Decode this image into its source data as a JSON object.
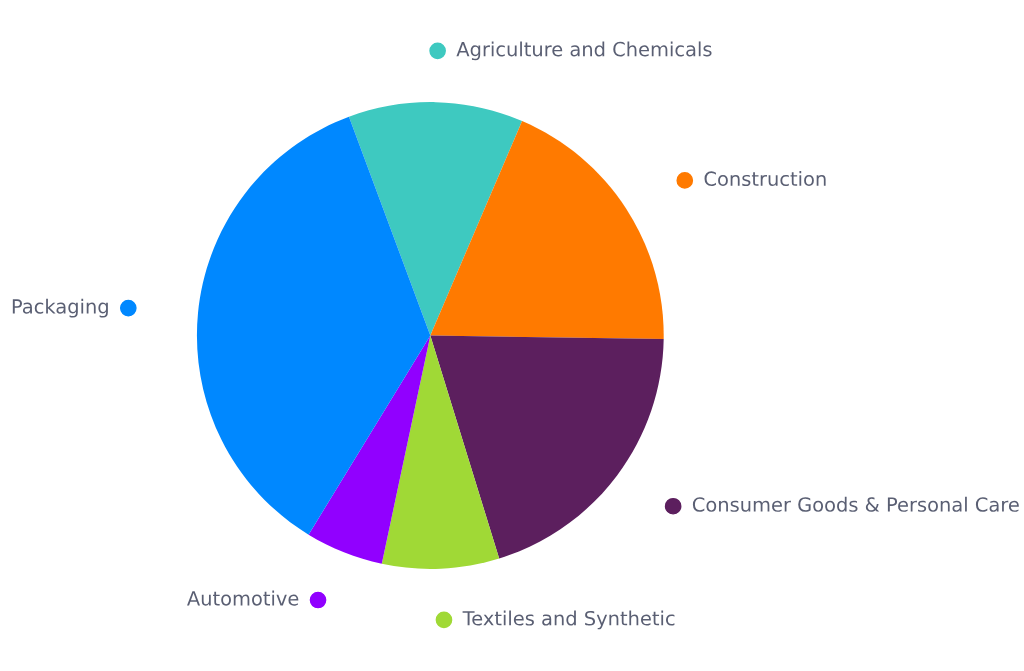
{
  "chart_data": {
    "type": "pie",
    "categories": [
      "Agriculture and Chemicals",
      "Construction",
      "Consumer Goods & Personal Care",
      "Textiles and Synthetic",
      "Automotive",
      "Packaging"
    ],
    "values": [
      12.1,
      18.8,
      20.0,
      8.1,
      5.4,
      35.6
    ],
    "colors": [
      "#3ec9c0",
      "#ff7a00",
      "#5c1f5e",
      "#a0d936",
      "#9100ff",
      "#0088ff"
    ],
    "legend": "right"
  }
}
